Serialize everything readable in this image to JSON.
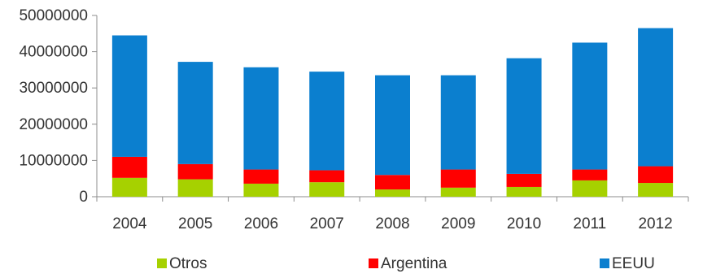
{
  "chart_data": {
    "type": "bar",
    "stacked": true,
    "categories": [
      "2004",
      "2005",
      "2006",
      "2007",
      "2008",
      "2009",
      "2010",
      "2011",
      "2012"
    ],
    "series": [
      {
        "name": "Otros",
        "color": "#a6d100",
        "values": [
          5200000,
          4800000,
          3600000,
          4000000,
          2000000,
          2500000,
          2700000,
          4500000,
          3800000
        ]
      },
      {
        "name": "Argentina",
        "color": "#ff0000",
        "values": [
          5800000,
          4200000,
          3900000,
          3300000,
          4000000,
          5000000,
          3600000,
          3000000,
          4600000
        ]
      },
      {
        "name": "EEUU",
        "color": "#0b7fcf",
        "values": [
          33500000,
          28200000,
          28200000,
          27200000,
          27500000,
          26000000,
          31900000,
          35000000,
          38100000
        ]
      }
    ],
    "y_ticks": [
      "0",
      "10000000",
      "20000000",
      "30000000",
      "40000000",
      "50000000"
    ],
    "ylim": [
      0,
      50000000
    ],
    "grid": false,
    "legend_position": "bottom"
  }
}
